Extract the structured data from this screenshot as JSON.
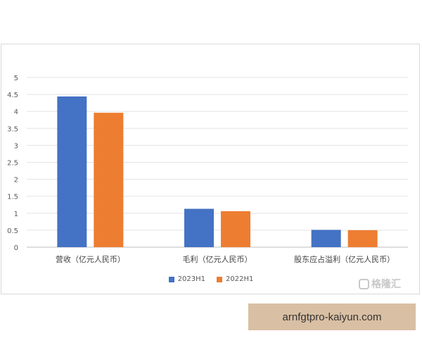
{
  "chart_data": {
    "type": "bar",
    "categories": [
      "营收（亿元人民币）",
      "毛利（亿元人民币）",
      "股东应占溢利（亿元人民币）"
    ],
    "series": [
      {
        "name": "2023H1",
        "values": [
          4.44,
          1.13,
          0.51
        ],
        "color": "#4472c4"
      },
      {
        "name": "2022H1",
        "values": [
          3.96,
          1.06,
          0.5
        ],
        "color": "#ed7d31"
      }
    ],
    "ylim": [
      0,
      5
    ],
    "yticks": [
      0,
      0.5,
      1,
      1.5,
      2,
      2.5,
      3,
      3.5,
      4,
      4.5,
      5
    ],
    "grid": true,
    "legend_position": "bottom"
  },
  "legend": {
    "items": [
      {
        "label": "2023H1",
        "color": "#4472c4"
      },
      {
        "label": "2022H1",
        "color": "#ed7d31"
      }
    ]
  },
  "watermark": {
    "text": "格隆汇"
  },
  "banner": {
    "text": "arnfgtpro-kaiyun.com"
  }
}
